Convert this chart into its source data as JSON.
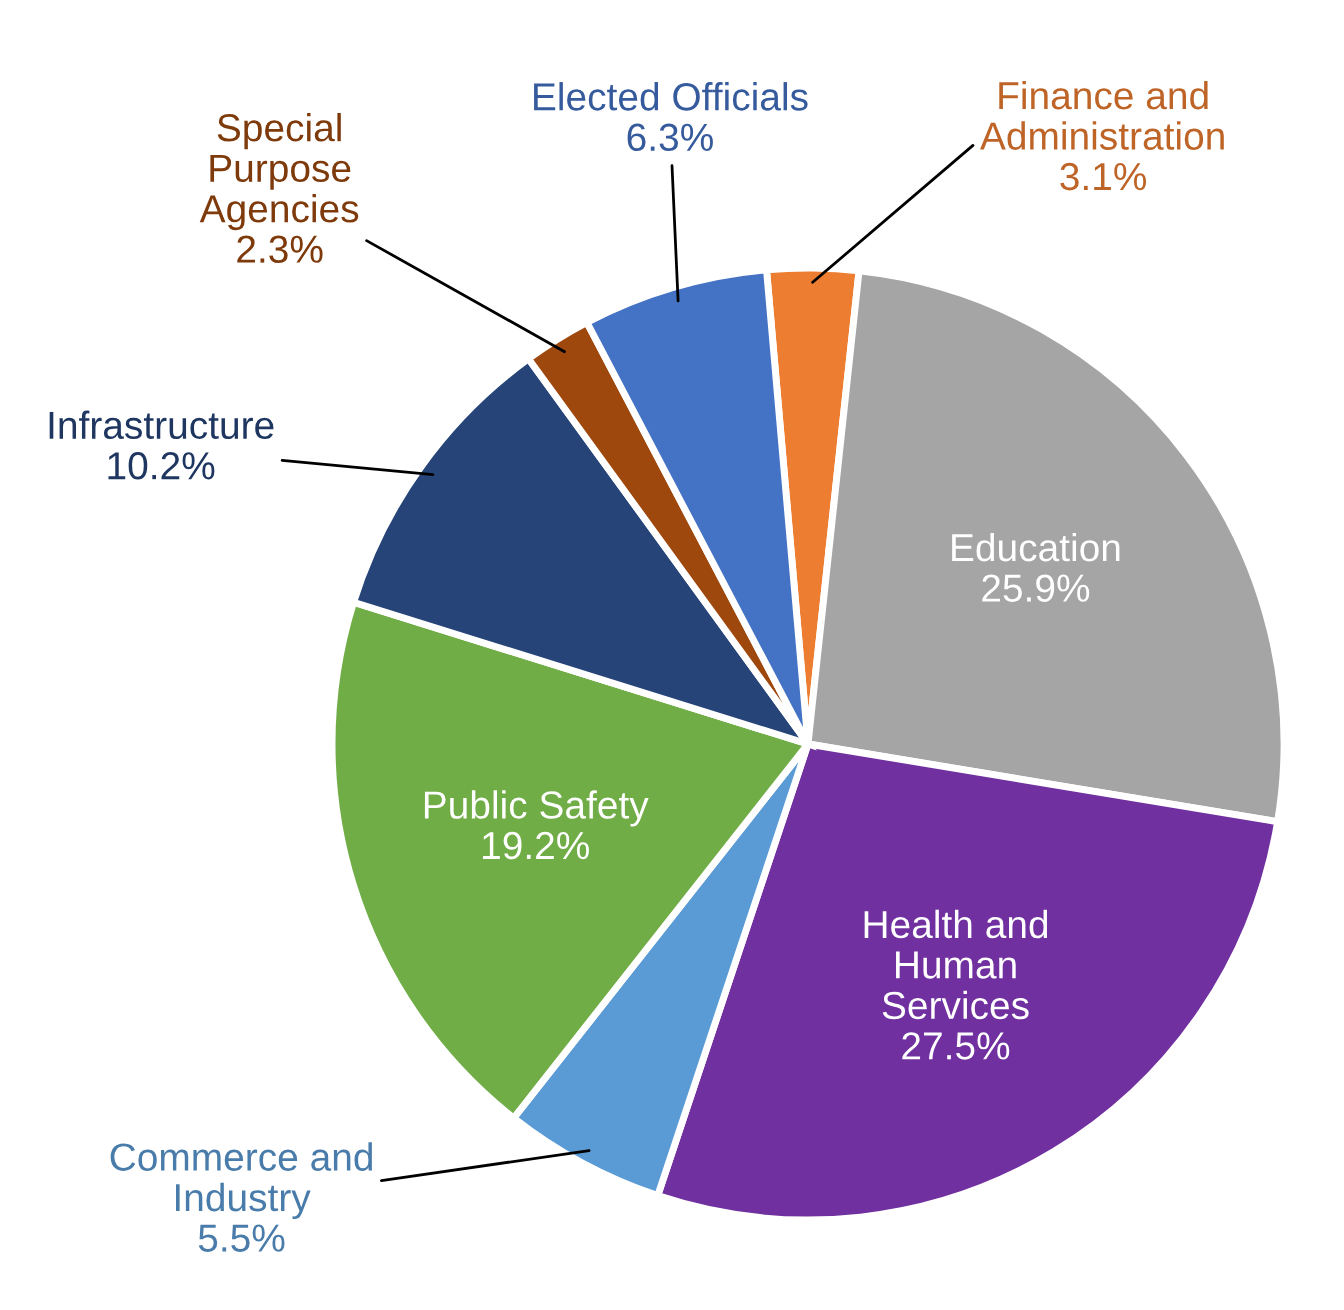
{
  "chart_data": {
    "type": "pie",
    "categories": [
      "Finance and\nAdministration",
      "Education",
      "Health and\nHuman\nServices",
      "Commerce and\nIndustry",
      "Public Safety",
      "Infrastructure",
      "Special\nPurpose\nAgencies",
      "Elected Officials"
    ],
    "values": [
      3.1,
      25.9,
      27.5,
      5.5,
      19.2,
      10.2,
      2.3,
      6.3
    ],
    "colors": [
      "#ed7d31",
      "#a5a5a5",
      "#7030a0",
      "#5b9bd5",
      "#70ad47",
      "#264478",
      "#9e480e",
      "#4472c4"
    ],
    "value_labels": [
      "3.1%",
      "25.9%",
      "27.5%",
      "5.5%",
      "19.2%",
      "10.2%",
      "2.3%",
      "6.3%"
    ]
  }
}
